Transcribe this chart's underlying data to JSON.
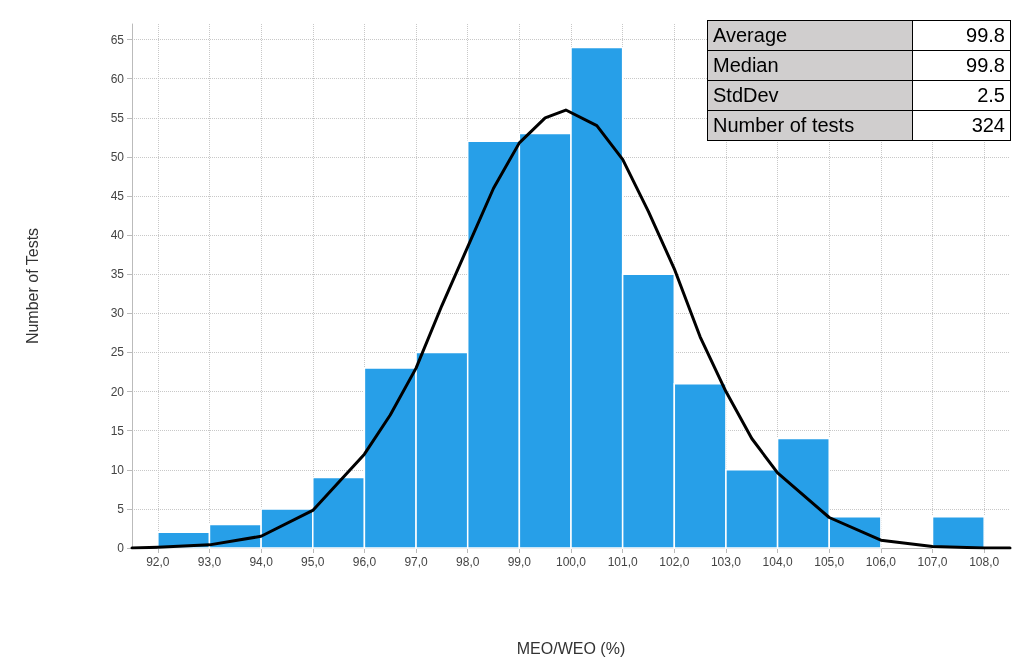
{
  "chart_data": {
    "type": "histogram",
    "xlabel": "MEO/WEO (%)",
    "ylabel": "Number of Tests",
    "bins": [
      92,
      93,
      94,
      95,
      96,
      97,
      98,
      99,
      100,
      101,
      102,
      103,
      104,
      105,
      106,
      107,
      108
    ],
    "values": [
      2,
      3,
      5,
      9,
      23,
      25,
      52,
      53,
      64,
      35,
      21,
      10,
      14,
      4,
      0,
      4
    ],
    "color": "#279fe8",
    "series": [
      {
        "type": "line",
        "color": "#000000",
        "x": [
          91.5,
          92,
          93,
          94,
          95,
          96,
          96.5,
          97,
          97.5,
          98,
          98.5,
          99,
          99.5,
          99.9,
          100.5,
          101,
          101.5,
          102,
          102.5,
          103,
          103.5,
          104,
          105,
          106,
          107,
          108,
          108.5
        ],
        "values": [
          0,
          0.1,
          0.4,
          1.5,
          4.8,
          12,
          17,
          23,
          31,
          38.5,
          46,
          51.8,
          55,
          56,
          54,
          49.7,
          43,
          35.7,
          27,
          20,
          14,
          9.6,
          3.9,
          1,
          0.2,
          0,
          0
        ]
      }
    ],
    "xlim": [
      91.5,
      108.5
    ],
    "xticks": [
      {
        "value": 92,
        "label": "92,0"
      },
      {
        "value": 93,
        "label": "93,0"
      },
      {
        "value": 94,
        "label": "94,0"
      },
      {
        "value": 95,
        "label": "95,0"
      },
      {
        "value": 96,
        "label": "96,0"
      },
      {
        "value": 97,
        "label": "97,0"
      },
      {
        "value": 98,
        "label": "98,0"
      },
      {
        "value": 99,
        "label": "99,0"
      },
      {
        "value": 100,
        "label": "100,0"
      },
      {
        "value": 101,
        "label": "101,0"
      },
      {
        "value": 102,
        "label": "102,0"
      },
      {
        "value": 103,
        "label": "103,0"
      },
      {
        "value": 104,
        "label": "104,0"
      },
      {
        "value": 105,
        "label": "105,0"
      },
      {
        "value": 106,
        "label": "106,0"
      },
      {
        "value": 107,
        "label": "107,0"
      },
      {
        "value": 108,
        "label": "108,0"
      }
    ],
    "ylim": [
      0,
      67
    ],
    "yticks": [
      0,
      5,
      10,
      15,
      20,
      25,
      30,
      35,
      40,
      45,
      50,
      55,
      60,
      65
    ],
    "grid": true,
    "marker": "none",
    "line_style": "solid",
    "annotations": [
      "Average",
      "99.8",
      "Median",
      "99.8",
      "StdDev",
      "2.5",
      "Number of tests",
      "324"
    ]
  }
}
